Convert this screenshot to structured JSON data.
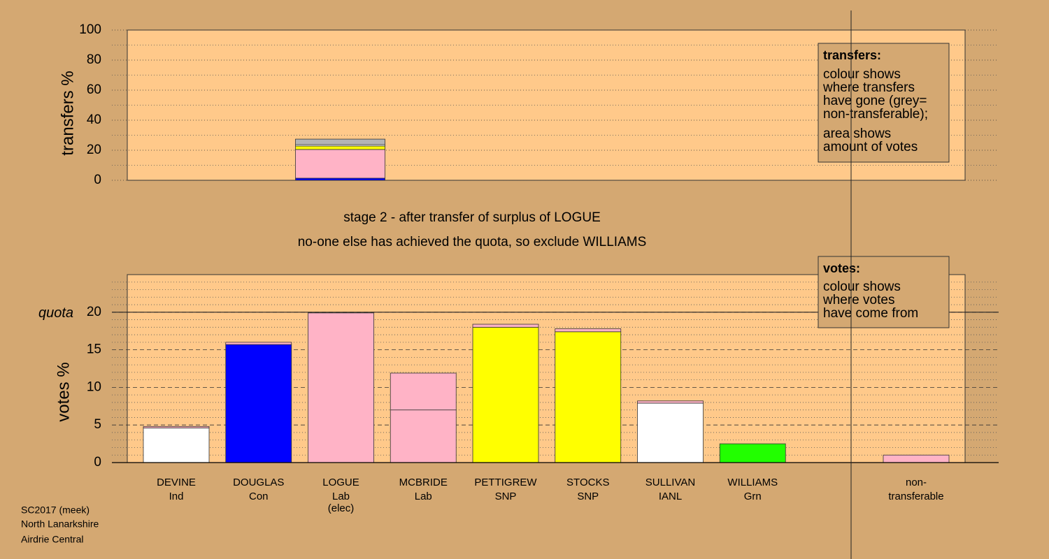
{
  "chart_data": [
    {
      "type": "stacked-bar",
      "ylabel": "transfers %",
      "ylim": [
        0,
        100
      ],
      "yticks": [
        0,
        20,
        40,
        60,
        80,
        100
      ],
      "minor_yticks": [
        10,
        30,
        50,
        70,
        90
      ],
      "grid": "dotted",
      "segments": [
        {
          "value": 1.4,
          "color": "#0000ff"
        },
        {
          "value": 19.1,
          "color": "#ffb3c6"
        },
        {
          "value": 2.3,
          "color": "#ffff00"
        },
        {
          "value": 0.9,
          "color": "#ffffff"
        },
        {
          "value": 3.7,
          "color": "#b4b4b4"
        }
      ],
      "legend": {
        "title": "transfers:",
        "lines": [
          "colour shows",
          "where transfers",
          "have gone (grey=",
          "non-transferable);",
          "area shows",
          "amount of votes"
        ]
      }
    },
    {
      "type": "stacked-bar",
      "ylabel": "votes %",
      "ylim": [
        0,
        25
      ],
      "yticks": [
        0,
        5,
        10,
        15,
        20
      ],
      "minor_yticks": [
        1,
        2,
        3,
        4,
        6,
        7,
        8,
        9,
        11,
        12,
        13,
        14,
        16,
        17,
        18,
        19,
        21,
        22,
        23,
        24
      ],
      "grid": "dashed",
      "quota": {
        "label": "quota",
        "value": 20
      },
      "candidates": [
        {
          "name": "DEVINE",
          "party": "Ind",
          "segments": [
            {
              "value": 4.6,
              "color": "#ffffff"
            },
            {
              "value": 0.2,
              "color": "#ffb3c6"
            }
          ]
        },
        {
          "name": "DOUGLAS",
          "party": "Con",
          "segments": [
            {
              "value": 15.7,
              "color": "#0000ff"
            },
            {
              "value": 0.3,
              "color": "#ffb3c6"
            }
          ]
        },
        {
          "name": "LOGUE",
          "party": "Lab",
          "note": "(elec)",
          "segments": [
            {
              "value": 19.9,
              "color": "#ffb3c6"
            }
          ]
        },
        {
          "name": "MCBRIDE",
          "party": "Lab",
          "segments": [
            {
              "value": 7.0,
              "color": "#ffb3c6"
            },
            {
              "value": 4.9,
              "color": "#ffb3c6"
            }
          ]
        },
        {
          "name": "PETTIGREW",
          "party": "SNP",
          "segments": [
            {
              "value": 18.0,
              "color": "#ffff00"
            },
            {
              "value": 0.4,
              "color": "#ffb3c6"
            }
          ]
        },
        {
          "name": "STOCKS",
          "party": "SNP",
          "segments": [
            {
              "value": 17.4,
              "color": "#ffff00"
            },
            {
              "value": 0.4,
              "color": "#ffb3c6"
            }
          ]
        },
        {
          "name": "SULLIVAN",
          "party": "IANL",
          "segments": [
            {
              "value": 7.9,
              "color": "#ffffff"
            },
            {
              "value": 0.3,
              "color": "#ffb3c6"
            }
          ]
        },
        {
          "name": "WILLIAMS",
          "party": "Grn",
          "segments": [
            {
              "value": 2.5,
              "color": "#22ff00"
            }
          ]
        }
      ],
      "nontransferable": {
        "label_lines": [
          "non-",
          "transferable"
        ],
        "segments": [
          {
            "value": 1.0,
            "color": "#ffb3c6"
          }
        ]
      },
      "legend": {
        "title": "votes:",
        "lines": [
          "colour shows",
          "where votes",
          "have come from"
        ]
      }
    }
  ],
  "stage": [
    "stage 2 - after transfer of surplus of LOGUE",
    "no-one else has achieved the quota, so exclude WILLIAMS"
  ],
  "footer": [
    "SC2017 (meek)",
    "North Lanarkshire",
    "Airdrie Central"
  ]
}
